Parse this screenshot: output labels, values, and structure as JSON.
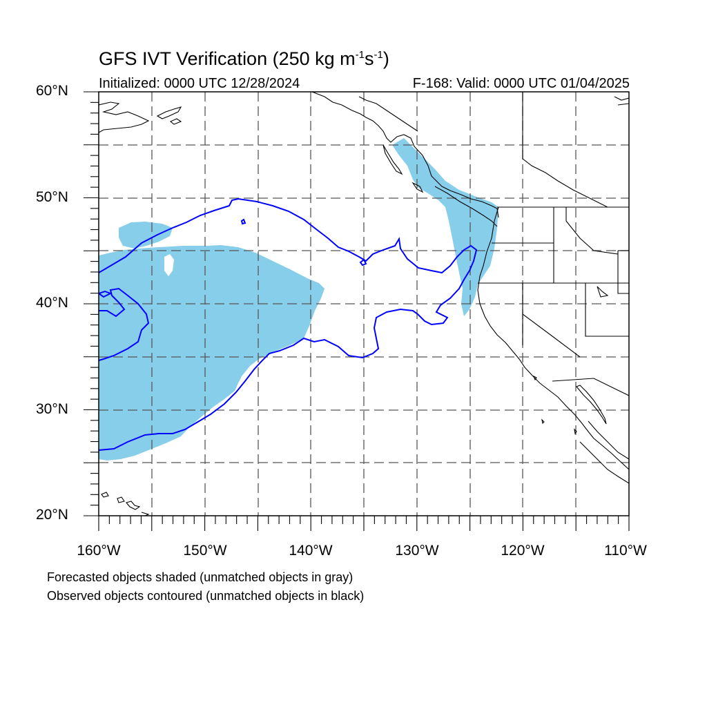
{
  "title": {
    "text": "GFS IVT Verification (250 kg m",
    "exp1": "-1",
    "mid": "s",
    "exp2": "-1",
    "end": ")"
  },
  "initialized": "Initialized: 0000 UTC 12/28/2024",
  "valid": "F-168: Valid: 0000 UTC 01/04/2025",
  "lat_labels": [
    {
      "deg": 60,
      "text": "60°N"
    },
    {
      "deg": 50,
      "text": "50°N"
    },
    {
      "deg": 40,
      "text": "40°N"
    },
    {
      "deg": 30,
      "text": "30°N"
    },
    {
      "deg": 20,
      "text": "20°N"
    }
  ],
  "lon_labels": [
    {
      "deg": -160,
      "text": "160°W"
    },
    {
      "deg": -150,
      "text": "150°W"
    },
    {
      "deg": -140,
      "text": "140°W"
    },
    {
      "deg": -130,
      "text": "130°W"
    },
    {
      "deg": -120,
      "text": "120°W"
    },
    {
      "deg": -110,
      "text": "110°W"
    }
  ],
  "extent": {
    "lon_min": -160,
    "lon_max": -110,
    "lat_min": 20,
    "lat_max": 60
  },
  "legend_notes": [
    "Forecasted objects shaded (unmatched objects in gray)",
    "Observed objects contoured (unmatched objects in black)"
  ],
  "colors": {
    "forecast_fill": "#87ceeb",
    "observed_contour": "#0000ff",
    "coastline": "#000000",
    "gridline": "#555555"
  }
}
